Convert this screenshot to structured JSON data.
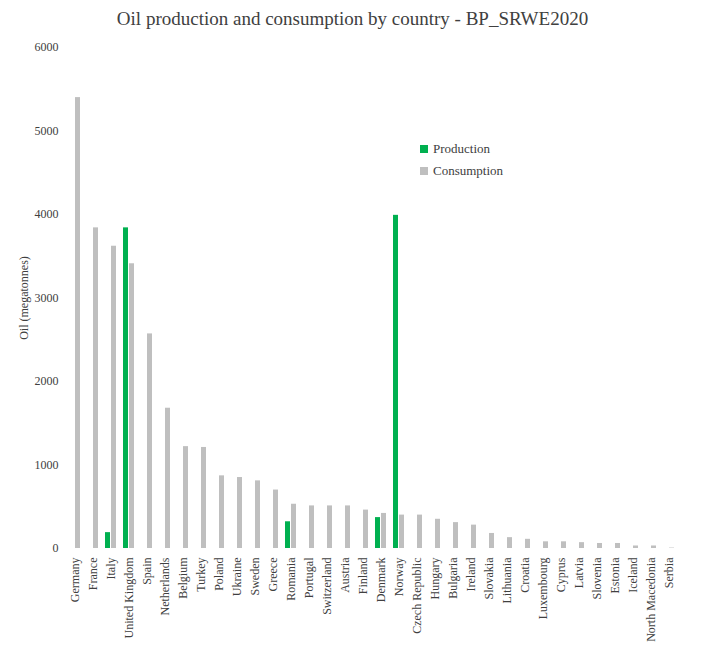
{
  "chart_data": {
    "type": "bar",
    "title": "Oil production and consumption by country - BP_SRWE2020",
    "y_label": "Oil (megatonnes)",
    "categories": [
      "Germany",
      "France",
      "Italy",
      "United Kingdom",
      "Spain",
      "Netherlands",
      "Belgium",
      "Turkey",
      "Poland",
      "Ukraine",
      "Sweden",
      "Greece",
      "Romania",
      "Portugal",
      "Switzerland",
      "Austria",
      "Finland",
      "Denmark",
      "Norway",
      "Czech Republic",
      "Hungary",
      "Bulgaria",
      "Ireland",
      "Slovakia",
      "Lithuania",
      "Croatia",
      "Luxembourg",
      "Cyprus",
      "Latvia",
      "Slovenia",
      "Estonia",
      "Iceland",
      "North Macedonia",
      "Serbia"
    ],
    "series": [
      {
        "name": "Production",
        "color": "#00b050",
        "values": [
          null,
          null,
          190,
          3840,
          null,
          null,
          null,
          null,
          null,
          null,
          null,
          null,
          320,
          null,
          null,
          null,
          null,
          370,
          3990,
          null,
          null,
          null,
          null,
          null,
          null,
          null,
          null,
          null,
          null,
          null,
          null,
          null,
          null,
          null
        ]
      },
      {
        "name": "Consumption",
        "color": "#bfbfbf",
        "values": [
          5400,
          3840,
          3620,
          3410,
          2570,
          1680,
          1220,
          1210,
          870,
          850,
          810,
          700,
          530,
          510,
          510,
          510,
          460,
          420,
          400,
          400,
          350,
          310,
          280,
          180,
          130,
          110,
          80,
          80,
          70,
          60,
          60,
          30,
          30,
          5
        ]
      }
    ],
    "ylim": [
      0,
      6000
    ],
    "yticks": [
      0,
      1000,
      2000,
      3000,
      4000,
      5000,
      6000
    ],
    "grid": false,
    "legend": "top"
  }
}
